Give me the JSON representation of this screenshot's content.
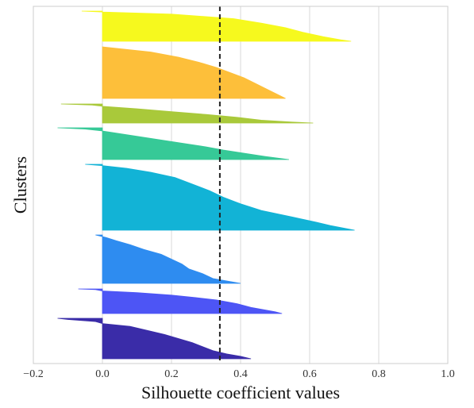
{
  "chart_data": {
    "type": "area",
    "xlabel": "Silhouette coefficient values",
    "ylabel": "Clusters",
    "xlim": [
      -0.2,
      1.0
    ],
    "xticks": [
      "−0.2",
      "0.0",
      "0.2",
      "0.4",
      "0.6",
      "0.8",
      "1.0"
    ],
    "xtick_values": [
      -0.2,
      0.0,
      0.2,
      0.4,
      0.6,
      0.8,
      1.0
    ],
    "grid": "vertical",
    "mean_silhouette": 0.34,
    "clusters": [
      {
        "profile": [
          [
            0,
            -0.13
          ],
          [
            0.03,
            -0.1
          ],
          [
            0.08,
            -0.02
          ],
          [
            0.13,
            0.0
          ],
          [
            0.2,
            0.08
          ],
          [
            0.3,
            0.13
          ],
          [
            0.4,
            0.18
          ],
          [
            0.5,
            0.22
          ],
          [
            0.6,
            0.26
          ],
          [
            0.7,
            0.29
          ],
          [
            0.8,
            0.32
          ],
          [
            0.88,
            0.36
          ],
          [
            0.94,
            0.4
          ],
          [
            1,
            0.43
          ]
        ],
        "color": "#3a2ca8"
      },
      {
        "profile": [
          [
            0,
            -0.07
          ],
          [
            0.03,
            -0.02
          ],
          [
            0.08,
            0.0
          ],
          [
            0.15,
            0.1
          ],
          [
            0.25,
            0.2
          ],
          [
            0.35,
            0.27
          ],
          [
            0.45,
            0.33
          ],
          [
            0.6,
            0.39
          ],
          [
            0.75,
            0.43
          ],
          [
            0.85,
            0.47
          ],
          [
            0.93,
            0.5
          ],
          [
            1,
            0.52
          ]
        ],
        "color": "#4d55f5"
      },
      {
        "profile": [
          [
            0,
            -0.02
          ],
          [
            0.05,
            0.01
          ],
          [
            0.12,
            0.04
          ],
          [
            0.2,
            0.08
          ],
          [
            0.3,
            0.12
          ],
          [
            0.4,
            0.17
          ],
          [
            0.5,
            0.2
          ],
          [
            0.6,
            0.23
          ],
          [
            0.7,
            0.25
          ],
          [
            0.8,
            0.29
          ],
          [
            0.9,
            0.32
          ],
          [
            1,
            0.4
          ]
        ],
        "color": "#2e8cf0"
      },
      {
        "profile": [
          [
            0,
            -0.05
          ],
          [
            0.02,
            0.0
          ],
          [
            0.06,
            0.07
          ],
          [
            0.12,
            0.14
          ],
          [
            0.2,
            0.21
          ],
          [
            0.3,
            0.26
          ],
          [
            0.4,
            0.31
          ],
          [
            0.5,
            0.35
          ],
          [
            0.6,
            0.4
          ],
          [
            0.7,
            0.46
          ],
          [
            0.8,
            0.55
          ],
          [
            0.88,
            0.62
          ],
          [
            0.93,
            0.66
          ],
          [
            1,
            0.73
          ]
        ],
        "color": "#12b3d6"
      },
      {
        "profile": [
          [
            0,
            -0.13
          ],
          [
            0.04,
            -0.05
          ],
          [
            0.1,
            0.0
          ],
          [
            0.2,
            0.06
          ],
          [
            0.3,
            0.12
          ],
          [
            0.4,
            0.18
          ],
          [
            0.5,
            0.24
          ],
          [
            0.6,
            0.3
          ],
          [
            0.7,
            0.35
          ],
          [
            0.8,
            0.41
          ],
          [
            0.9,
            0.47
          ],
          [
            1,
            0.54
          ]
        ],
        "color": "#36c997"
      },
      {
        "profile": [
          [
            0,
            -0.12
          ],
          [
            0.06,
            -0.03
          ],
          [
            0.12,
            0.0
          ],
          [
            0.25,
            0.1
          ],
          [
            0.4,
            0.2
          ],
          [
            0.55,
            0.3
          ],
          [
            0.7,
            0.39
          ],
          [
            0.85,
            0.46
          ],
          [
            0.95,
            0.55
          ],
          [
            1,
            0.61
          ]
        ],
        "color": "#a9c93a"
      },
      {
        "profile": [
          [
            0,
            0.0
          ],
          [
            0.1,
            0.14
          ],
          [
            0.2,
            0.22
          ],
          [
            0.3,
            0.28
          ],
          [
            0.4,
            0.33
          ],
          [
            0.5,
            0.37
          ],
          [
            0.6,
            0.41
          ],
          [
            0.7,
            0.44
          ],
          [
            0.8,
            0.47
          ],
          [
            0.9,
            0.5
          ],
          [
            1,
            0.53
          ]
        ],
        "color": "#fdbf3a"
      },
      {
        "profile": [
          [
            0,
            -0.06
          ],
          [
            0.03,
            0.0
          ],
          [
            0.1,
            0.2
          ],
          [
            0.25,
            0.38
          ],
          [
            0.4,
            0.46
          ],
          [
            0.55,
            0.53
          ],
          [
            0.7,
            0.58
          ],
          [
            0.85,
            0.64
          ],
          [
            0.95,
            0.69
          ],
          [
            1,
            0.72
          ]
        ],
        "color": "#f6f91e"
      }
    ]
  }
}
